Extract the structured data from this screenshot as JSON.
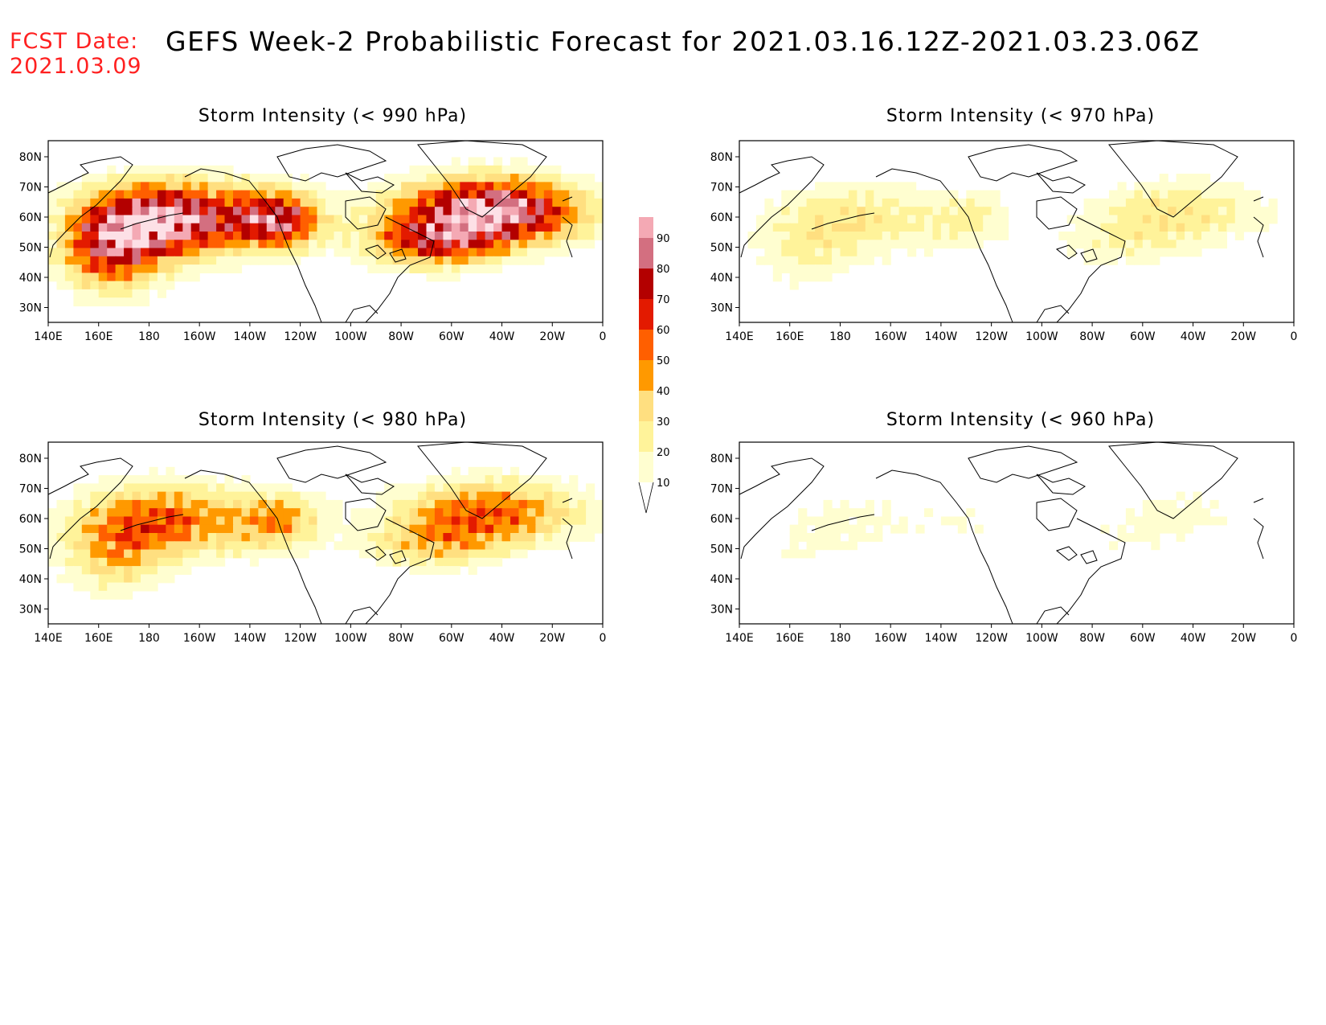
{
  "header": {
    "fcst_label": "FCST Date:",
    "fcst_date": "2021.03.09",
    "title": "GEFS Week-2 Probabilistic Forecast for 2021.03.16.12Z-2021.03.23.06Z"
  },
  "axes": {
    "lon_labels": [
      "140E",
      "160E",
      "180",
      "160W",
      "140W",
      "120W",
      "100W",
      "80W",
      "60W",
      "40W",
      "20W",
      "0"
    ],
    "lat_labels": [
      "80N",
      "70N",
      "60N",
      "50N",
      "40N",
      "30N"
    ]
  },
  "panels": [
    {
      "id": "p990",
      "title": "Storm Intensity (< 990 hPa)",
      "intensity": 1.0
    },
    {
      "id": "p970",
      "title": "Storm Intensity (< 970 hPa)",
      "intensity": 0.28
    },
    {
      "id": "p980",
      "title": "Storm Intensity (< 980 hPa)",
      "intensity": 0.55
    },
    {
      "id": "p960",
      "title": "Storm Intensity (< 960 hPa)",
      "intensity": 0.12
    }
  ],
  "colorbar": {
    "levels": [
      "10",
      "20",
      "30",
      "40",
      "50",
      "60",
      "70",
      "80",
      "90"
    ],
    "colors": [
      "#fffed0",
      "#fff39a",
      "#ffdf80",
      "#ff9900",
      "#ff5f00",
      "#e31a00",
      "#b30000",
      "#d36f80",
      "#f4a9b4",
      "#fde0e6"
    ]
  }
}
